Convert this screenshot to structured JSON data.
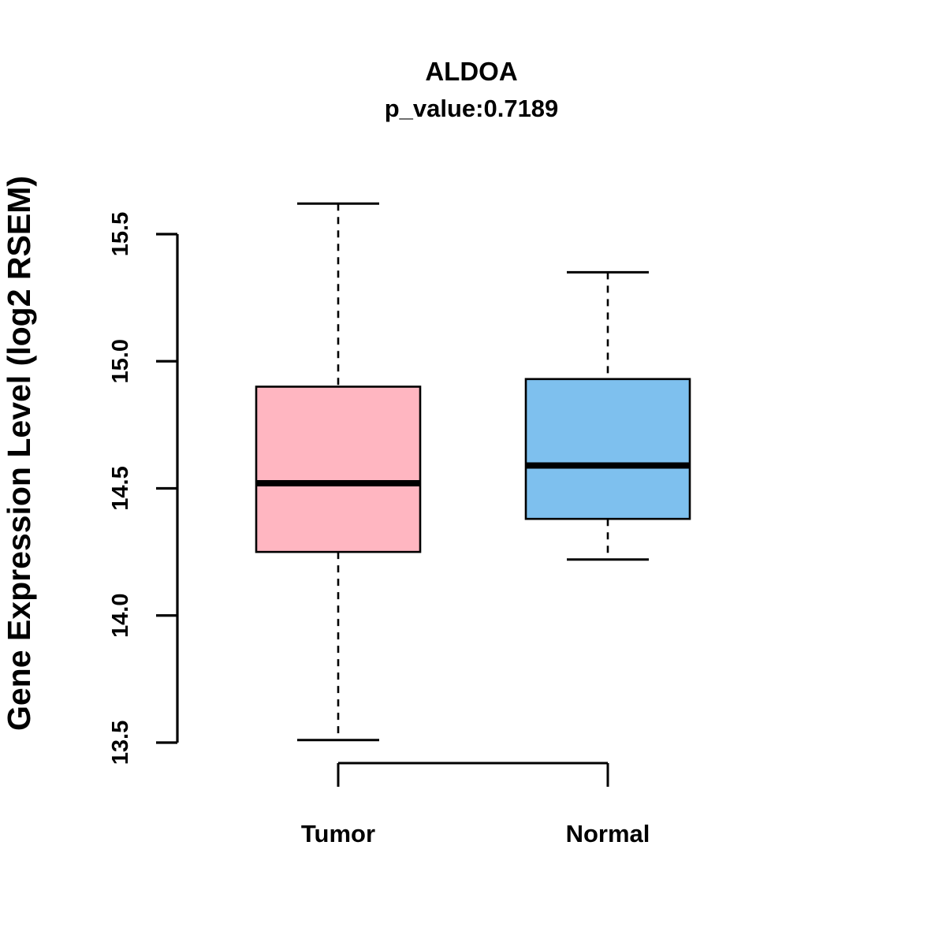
{
  "title": "ALDOA",
  "subtitle": "p_value:0.7189",
  "ylabel": "Gene Expression Level (log2 RSEM)",
  "chart_data": {
    "type": "boxplot",
    "title": "ALDOA",
    "subtitle": "p_value:0.7189",
    "xlabel": "",
    "ylabel": "Gene Expression Level (log2 RSEM)",
    "ylim": [
      13.5,
      15.5
    ],
    "yticks": [
      "13.5",
      "14.0",
      "14.5",
      "15.0",
      "15.5"
    ],
    "grid": false,
    "legend": "none",
    "categories": [
      "Tumor",
      "Normal"
    ],
    "series": [
      {
        "name": "Tumor",
        "color": "#FFB6C1",
        "whisker_low": 13.51,
        "q1": 14.25,
        "median": 14.52,
        "q3": 14.9,
        "whisker_high": 15.62
      },
      {
        "name": "Normal",
        "color": "#7EC0EE",
        "whisker_low": 14.22,
        "q1": 14.38,
        "median": 14.59,
        "q3": 14.93,
        "whisker_high": 15.35
      }
    ]
  }
}
